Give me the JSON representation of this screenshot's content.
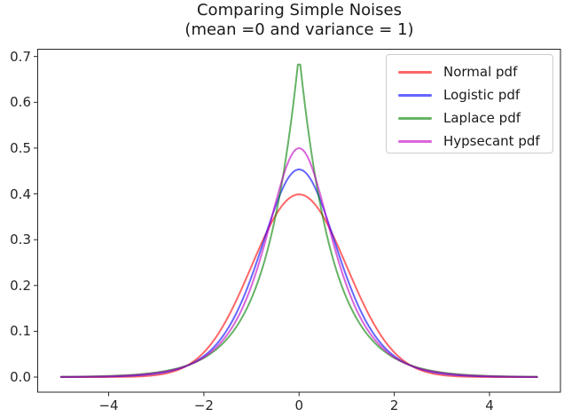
{
  "figure": {
    "title_lines": [
      "Comparing Simple Noises",
      "(mean =0 and variance = 1)"
    ]
  },
  "chart_data": {
    "type": "line",
    "title": "Comparing Simple Noises (mean =0 and variance = 1)",
    "xlabel": "",
    "ylabel": "",
    "grid": false,
    "legend_position": "upper right",
    "x_range": [
      -5,
      5
    ],
    "n_points": 200,
    "xlim": [
      -5.5,
      5.5
    ],
    "ylim": [
      -0.0339,
      0.7168
    ],
    "x_ticks": [
      -4,
      -2,
      0,
      2,
      4
    ],
    "x_tick_labels": [
      "−4",
      "−2",
      "0",
      "2",
      "4"
    ],
    "y_ticks": [
      0.0,
      0.1,
      0.2,
      0.3,
      0.4,
      0.5,
      0.6,
      0.7
    ],
    "y_tick_labels": [
      "0.0",
      "0.1",
      "0.2",
      "0.3",
      "0.4",
      "0.5",
      "0.6",
      "0.7"
    ],
    "series": [
      {
        "name": "Normal pdf",
        "dist": "normal",
        "mean": 0,
        "variance": 1,
        "peak_y": 0.399,
        "stroke": "rgba(255,0,0,0.6)"
      },
      {
        "name": "Logistic pdf",
        "dist": "logistic",
        "mean": 0,
        "variance": 1,
        "peak_y": 0.453,
        "stroke": "rgba(0,0,255,0.6)"
      },
      {
        "name": "Laplace pdf",
        "dist": "laplace",
        "mean": 0,
        "variance": 1,
        "peak_y": 0.683,
        "stroke": "rgba(0,128,0,0.6)"
      },
      {
        "name": "Hypsecant pdf",
        "dist": "hypsecant",
        "mean": 0,
        "variance": 1,
        "peak_y": 0.5,
        "stroke": "rgba(191,0,191,0.6)"
      }
    ]
  },
  "colors": {
    "background": "#ffffff",
    "spine": "#262626",
    "tick_mark": "#262626",
    "tick_label": "#262626",
    "title_text": "#1a1a1a",
    "legend_border": "#cccccc"
  }
}
